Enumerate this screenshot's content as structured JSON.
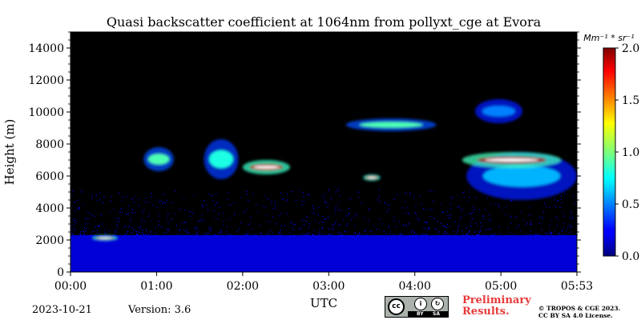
{
  "chart_data": {
    "type": "heatmap",
    "title": "Quasi backscatter coefficient at 1064nm from pollyxt_cge at Evora",
    "xlabel": "UTC",
    "ylabel": "Height (m)",
    "x_ticks": [
      "00:00",
      "01:00",
      "02:00",
      "03:00",
      "04:00",
      "05:00",
      "05:53"
    ],
    "x_tick_hours": [
      0,
      1,
      2,
      3,
      4,
      5,
      5.883
    ],
    "x_range_hours": [
      0,
      5.883
    ],
    "y_ticks": [
      "0",
      "2000",
      "4000",
      "6000",
      "8000",
      "10000",
      "12000",
      "14000"
    ],
    "y_tick_values": [
      0,
      2000,
      4000,
      6000,
      8000,
      10000,
      12000,
      14000
    ],
    "ylim": [
      0,
      15000
    ],
    "colorbar": {
      "label": "Mm⁻¹ * sr⁻¹",
      "range": [
        0.0,
        2.0
      ],
      "ticks": [
        "0.0",
        "0.5",
        "1.0",
        "1.5",
        "2.0"
      ],
      "tick_values": [
        0,
        0.5,
        1.0,
        1.5,
        2.0
      ],
      "colormap": "jet"
    },
    "background_color": "#000000",
    "features": [
      {
        "kind": "boundary_layer",
        "t_start": 0.0,
        "t_end": 5.883,
        "h_bottom": 0,
        "h_top": 2300,
        "value": 0.05
      },
      {
        "kind": "noise_layer",
        "t_start": 0.0,
        "t_end": 5.883,
        "h_bottom": 2300,
        "h_top": 5200,
        "value": 0.1
      },
      {
        "kind": "cloud",
        "t_start": 0.25,
        "t_end": 0.55,
        "h_bottom": 1950,
        "h_top": 2300,
        "value": 1.9
      },
      {
        "kind": "cloud",
        "t_start": 0.85,
        "t_end": 1.2,
        "h_bottom": 6300,
        "h_top": 7800,
        "value": 0.9
      },
      {
        "kind": "cloud",
        "t_start": 1.55,
        "t_end": 1.95,
        "h_bottom": 5800,
        "h_top": 8300,
        "value": 0.8
      },
      {
        "kind": "cloud",
        "t_start": 2.0,
        "t_end": 2.55,
        "h_bottom": 6100,
        "h_top": 7000,
        "value": 1.9
      },
      {
        "kind": "cloud",
        "t_start": 3.4,
        "t_end": 3.6,
        "h_bottom": 5700,
        "h_top": 6100,
        "value": 1.8
      },
      {
        "kind": "cloud",
        "t_start": 3.2,
        "t_end": 4.25,
        "h_bottom": 8800,
        "h_top": 9600,
        "value": 0.9
      },
      {
        "kind": "cloud",
        "t_start": 4.6,
        "t_end": 5.883,
        "h_bottom": 4500,
        "h_top": 7500,
        "value": 0.6
      },
      {
        "kind": "cloud",
        "t_start": 4.55,
        "t_end": 5.7,
        "h_bottom": 6500,
        "h_top": 7500,
        "value": 1.95
      },
      {
        "kind": "cloud",
        "t_start": 4.7,
        "t_end": 5.25,
        "h_bottom": 9300,
        "h_top": 10800,
        "value": 0.5
      }
    ]
  },
  "footer": {
    "date": "2023-10-21",
    "version": "Version: 3.6",
    "preliminary_line1": "Preliminary",
    "preliminary_line2": "Results.",
    "copyright_line1": "© TROPOS & CGE 2023.",
    "copyright_line2": "CC BY SA 4.0 License.",
    "license_badge": {
      "symbols": [
        "cc",
        "by",
        "sa"
      ],
      "labels": [
        "BY",
        "SA"
      ]
    },
    "preliminary_color": "#e83a3a"
  }
}
